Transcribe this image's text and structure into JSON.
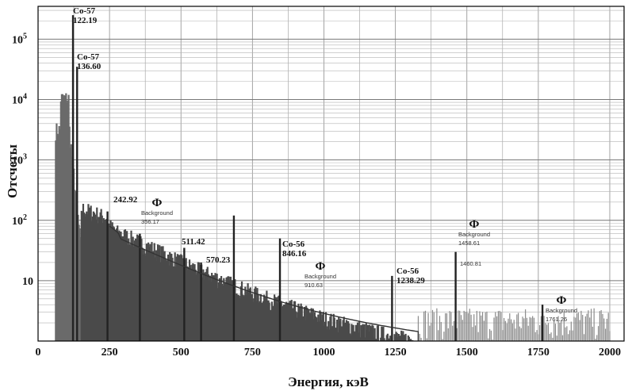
{
  "chart_data": {
    "type": "line",
    "title": "",
    "xlabel": "Энергия, кэВ",
    "ylabel": "Отсчеты",
    "xlim": [
      0,
      2050
    ],
    "ylim": [
      1,
      350000
    ],
    "yscale": "log",
    "grid": true,
    "x_ticks": [
      "0",
      "250",
      "500",
      "750",
      "1000",
      "1250",
      "1500",
      "1750",
      "2000"
    ],
    "y_ticks": [
      {
        "value": 10,
        "label": "10"
      },
      {
        "value": 100,
        "label": "10",
        "exp": "2"
      },
      {
        "value": 1000,
        "label": "10",
        "exp": "3"
      },
      {
        "value": 10000,
        "label": "10",
        "exp": "4"
      },
      {
        "value": 100000,
        "label": "10",
        "exp": "5"
      }
    ],
    "peaks": [
      {
        "energy": 122.19,
        "counts": 250000
      },
      {
        "energy": 136.6,
        "counts": 35000
      },
      {
        "energy": 242.92,
        "counts": 140
      },
      {
        "energy": 356.17,
        "counts": 60
      },
      {
        "energy": 511.42,
        "counts": 35
      },
      {
        "energy": 570.23,
        "counts": 20
      },
      {
        "energy": 685,
        "counts": 120
      },
      {
        "energy": 846.16,
        "counts": 50
      },
      {
        "energy": 1238.29,
        "counts": 12
      },
      {
        "energy": 1460.81,
        "counts": 30
      },
      {
        "energy": 1764.5,
        "counts": 4
      }
    ],
    "annotations": [
      {
        "energy": 122.19,
        "lines": [
          "Co-57",
          "122.19"
        ],
        "kind": "peak"
      },
      {
        "energy": 136.6,
        "lines": [
          "Co-57",
          "136.60"
        ],
        "kind": "peak"
      },
      {
        "energy": 242.92,
        "lines": [
          "242.92"
        ],
        "kind": "peak"
      },
      {
        "energy": 356.17,
        "lines": [
          "Ф",
          "Background",
          "356.17"
        ],
        "kind": "background"
      },
      {
        "energy": 511.42,
        "lines": [
          "511.42"
        ],
        "kind": "peak"
      },
      {
        "energy": 570.23,
        "lines": [
          "570.23"
        ],
        "kind": "peak"
      },
      {
        "energy": 846.16,
        "lines": [
          "Co-56",
          "846.16"
        ],
        "kind": "peak"
      },
      {
        "energy": 910.63,
        "lines": [
          "Ф",
          "Background",
          "910.63"
        ],
        "kind": "background"
      },
      {
        "energy": 1238.29,
        "lines": [
          "Co-56",
          "1238.29"
        ],
        "kind": "peak"
      },
      {
        "energy": 1458.61,
        "lines": [
          "Ф",
          "Background",
          "1458.61",
          "1460.81"
        ],
        "kind": "background"
      },
      {
        "energy": 1761.26,
        "lines": [
          "Ф",
          "Background",
          "1761.26"
        ],
        "kind": "background"
      }
    ]
  }
}
